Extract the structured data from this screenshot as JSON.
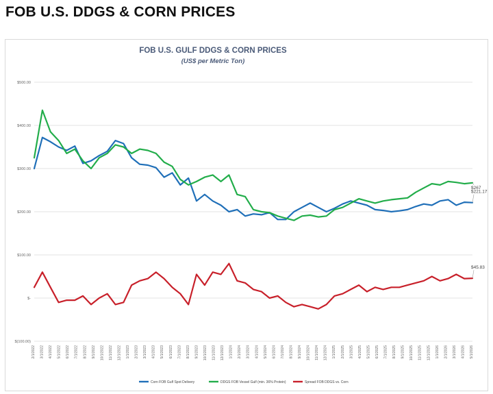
{
  "page": {
    "heading": "FOB U.S. DDGS & CORN PRICES"
  },
  "chart_data": {
    "type": "line",
    "title": "FOB U.S. GULF DDGS & CORN PRICES",
    "subtitle": "(US$ per Metric Ton)",
    "xlabel": "",
    "ylabel": "",
    "ylim": [
      -100,
      500
    ],
    "y_ticks": [
      {
        "value": 500,
        "label": "$500.00"
      },
      {
        "value": 400,
        "label": "$400.00"
      },
      {
        "value": 300,
        "label": "$300.00"
      },
      {
        "value": 200,
        "label": "$200.00"
      },
      {
        "value": 100,
        "label": "$100.00"
      },
      {
        "value": 0,
        "label": "$-"
      },
      {
        "value": -100,
        "label": "$(100.00)"
      }
    ],
    "grid": true,
    "legend": "bottom",
    "x_ticks": [
      "2/1/2022",
      "3/1/2022",
      "4/1/2022",
      "5/1/2022",
      "6/1/2022",
      "7/1/2022",
      "8/1/2022",
      "9/1/2022",
      "10/1/2022",
      "11/1/2022",
      "12/1/2022",
      "1/1/2023",
      "2/1/2023",
      "3/1/2023",
      "4/1/2023",
      "5/1/2023",
      "6/1/2023",
      "7/1/2023",
      "8/1/2023",
      "9/1/2023",
      "10/1/2023",
      "11/1/2023",
      "12/1/2023",
      "1/1/2024",
      "2/1/2024",
      "3/1/2024",
      "4/1/2024",
      "5/1/2024",
      "6/1/2024",
      "7/1/2024",
      "8/1/2024",
      "9/1/2024",
      "10/1/2024",
      "11/1/2024",
      "12/1/2024",
      "1/1/2025",
      "2/1/2025",
      "3/1/2025",
      "4/1/2025",
      "5/1/2025",
      "6/1/2025",
      "7/1/2025",
      "8/1/2025",
      "9/1/2025",
      "10/1/2025",
      "11/1/2025",
      "12/1/2025",
      "1/1/2026",
      "2/1/2026",
      "3/1/2026",
      "4/1/2026",
      "5/1/2026"
    ],
    "series": [
      {
        "name": "Corn FOB Gulf Spot Delivery",
        "color": "#1f6fb8",
        "end_label": "$221.17",
        "values": [
          300,
          372,
          362,
          350,
          342,
          352,
          312,
          318,
          330,
          340,
          365,
          358,
          325,
          310,
          308,
          302,
          280,
          290,
          262,
          278,
          225,
          240,
          225,
          215,
          200,
          205,
          190,
          195,
          193,
          198,
          182,
          182,
          200,
          210,
          220,
          210,
          200,
          208,
          218,
          225,
          220,
          215,
          205,
          203,
          200,
          202,
          205,
          212,
          218,
          215,
          225,
          228,
          215,
          222,
          221.17
        ]
      },
      {
        "name": "DDGS FOB Vessel Gulf (min. 36% Protein)",
        "color": "#22ad4a",
        "end_label": "$267",
        "values": [
          325,
          435,
          385,
          365,
          335,
          345,
          318,
          300,
          325,
          335,
          355,
          350,
          335,
          345,
          342,
          335,
          315,
          305,
          275,
          262,
          270,
          280,
          285,
          270,
          285,
          240,
          235,
          205,
          200,
          198,
          190,
          185,
          180,
          190,
          192,
          188,
          190,
          205,
          210,
          220,
          230,
          225,
          220,
          225,
          228,
          230,
          232,
          245,
          255,
          265,
          262,
          270,
          268,
          265,
          267
        ]
      },
      {
        "name": "Spread FOB DDGS vs. Corn",
        "color": "#c8202a",
        "end_label": "$45.83",
        "values": [
          25,
          60,
          25,
          -10,
          -5,
          -5,
          5,
          -15,
          0,
          10,
          -15,
          -10,
          30,
          40,
          45,
          60,
          45,
          25,
          10,
          -15,
          55,
          30,
          60,
          55,
          80,
          40,
          35,
          20,
          15,
          0,
          5,
          -10,
          -20,
          -15,
          -20,
          -25,
          -15,
          5,
          10,
          20,
          30,
          15,
          25,
          20,
          25,
          25,
          30,
          35,
          40,
          50,
          40,
          45,
          55,
          45,
          45.83
        ]
      }
    ]
  }
}
